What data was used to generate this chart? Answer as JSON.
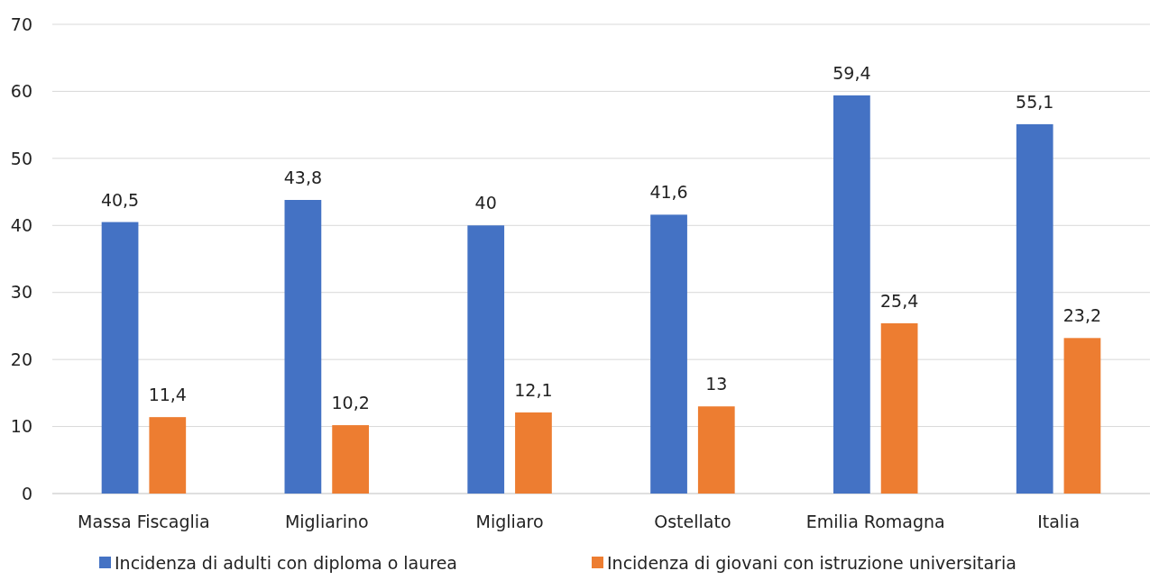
{
  "chart_data": {
    "type": "bar",
    "categories": [
      "Massa Fiscaglia",
      "Migliarino",
      "Migliaro",
      "Ostellato",
      "Emilia Romagna",
      "Italia"
    ],
    "series": [
      {
        "name": "Incidenza di adulti con diploma o laurea",
        "color": "#4472c4",
        "values": [
          40.5,
          43.8,
          40,
          41.6,
          59.4,
          55.1
        ],
        "value_labels": [
          "40,5",
          "43,8",
          "40",
          "41,6",
          "59,4",
          "55,1"
        ]
      },
      {
        "name": "Incidenza di giovani con istruzione universitaria",
        "color": "#ed7d31",
        "values": [
          11.4,
          10.2,
          12.1,
          13,
          25.4,
          23.2
        ],
        "value_labels": [
          "11,4",
          "10,2",
          "12,1",
          "13",
          "25,4",
          "23,2"
        ]
      }
    ],
    "ylim": [
      0,
      70
    ],
    "yticks": [
      0,
      10,
      20,
      30,
      40,
      50,
      60,
      70
    ],
    "grid": "y",
    "legend": "bottom"
  }
}
